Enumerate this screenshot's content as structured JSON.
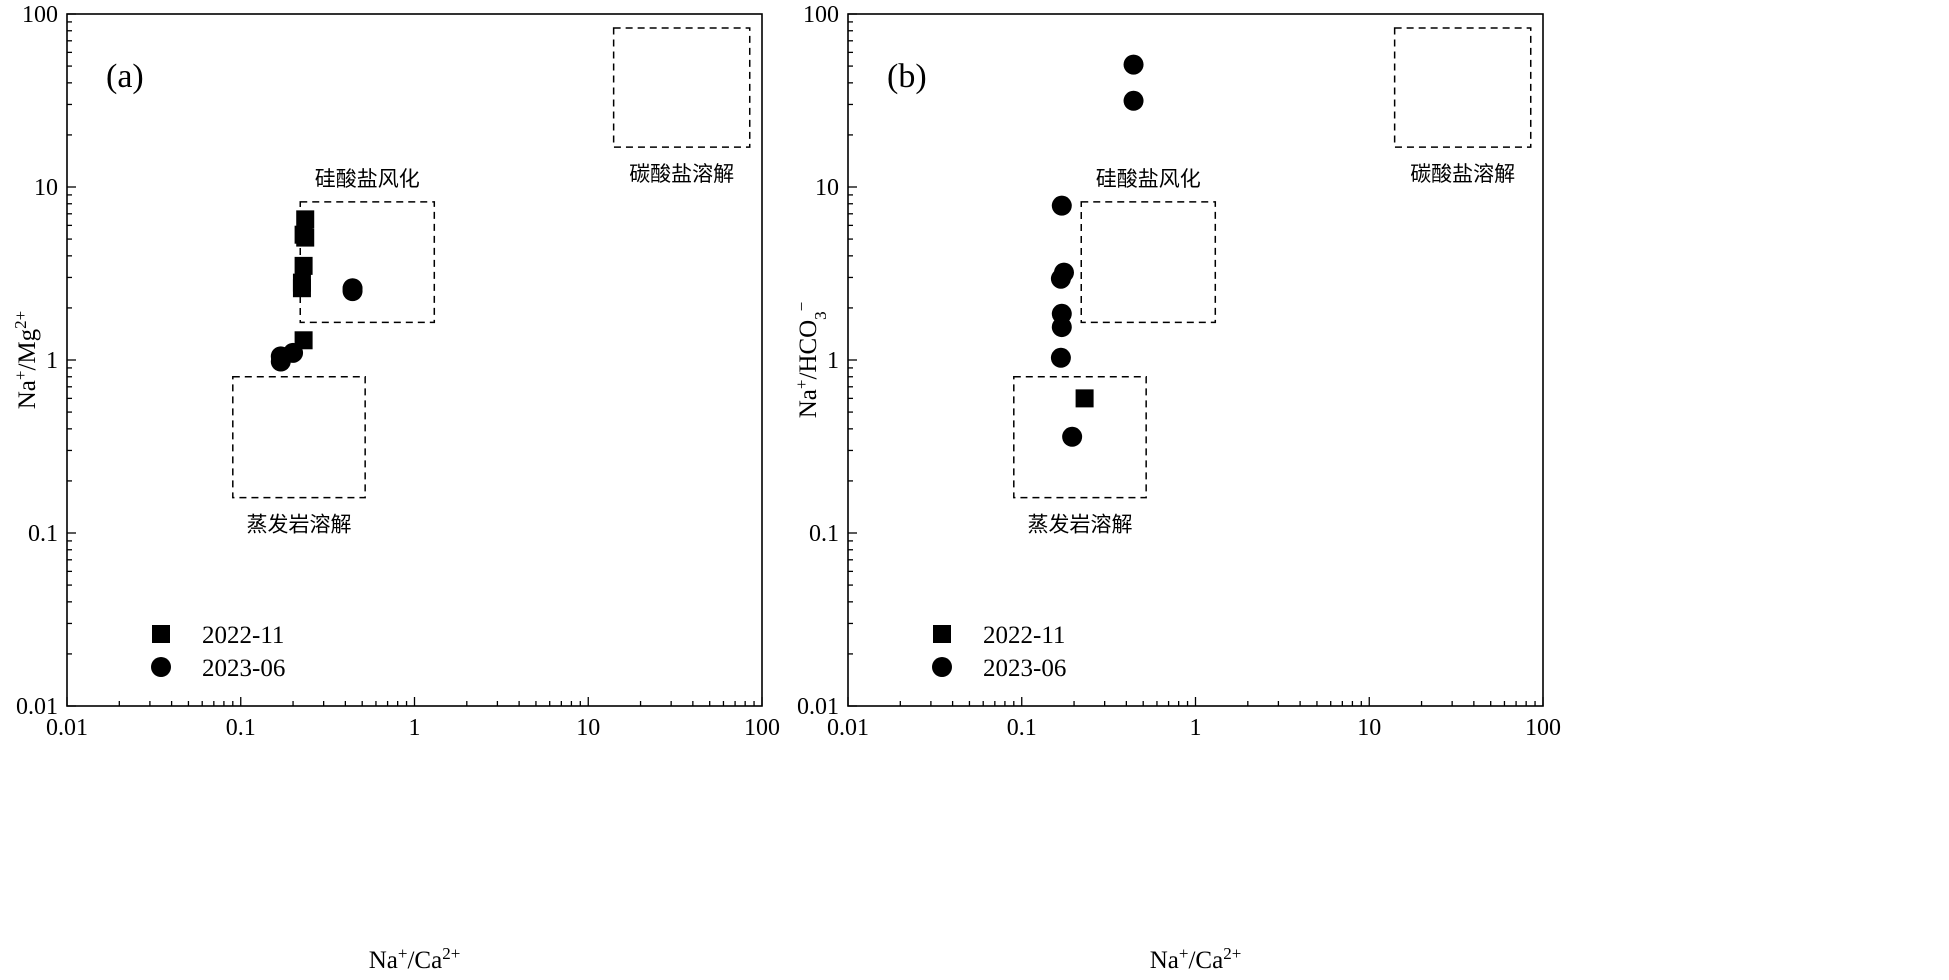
{
  "chart_data": [
    {
      "type": "scatter",
      "panel_label": "(a)",
      "xlabel": "Na⁺/Ca²⁺",
      "ylabel": "Na⁺/Mg²⁺",
      "x_scale": "log",
      "y_scale": "log",
      "xlim": [
        0.01,
        100
      ],
      "ylim": [
        0.01,
        100
      ],
      "x_ticks": [
        "0.01",
        "0.1",
        "1",
        "10",
        "100"
      ],
      "y_ticks": [
        "0.01",
        "0.1",
        "1",
        "10",
        "100"
      ],
      "grid": false,
      "legend_position": "bottom-left",
      "regions": [
        {
          "label": "蒸发岩溶解",
          "x": [
            0.09,
            0.52
          ],
          "y": [
            0.16,
            0.8
          ],
          "label_pos": "below"
        },
        {
          "label": "硅酸盐风化",
          "x": [
            0.22,
            1.3
          ],
          "y": [
            1.65,
            8.2
          ],
          "label_pos": "above"
        },
        {
          "label": "碳酸盐溶解",
          "x": [
            14,
            85
          ],
          "y": [
            17,
            83
          ],
          "label_pos": "below"
        }
      ],
      "series": [
        {
          "name": "2022-11",
          "marker": "square",
          "x": [
            0.235,
            0.23,
            0.23,
            0.225,
            0.225,
            0.23,
            0.235
          ],
          "y": [
            6.5,
            5.3,
            3.5,
            2.8,
            2.6,
            1.3,
            5.1
          ]
        },
        {
          "name": "2023-06",
          "marker": "circle",
          "x": [
            0.17,
            0.17,
            0.2,
            0.44,
            0.44
          ],
          "y": [
            1.05,
            0.98,
            1.1,
            2.6,
            2.5
          ]
        }
      ]
    },
    {
      "type": "scatter",
      "panel_label": "(b)",
      "xlabel": "Na⁺/Ca²⁺",
      "ylabel": "Na⁺/HCO₃⁻",
      "x_scale": "log",
      "y_scale": "log",
      "xlim": [
        0.01,
        100
      ],
      "ylim": [
        0.01,
        100
      ],
      "x_ticks": [
        "0.01",
        "0.1",
        "1",
        "10",
        "100"
      ],
      "y_ticks": [
        "0.01",
        "0.1",
        "1",
        "10",
        "100"
      ],
      "grid": false,
      "legend_position": "bottom-left",
      "regions": [
        {
          "label": "蒸发岩溶解",
          "x": [
            0.09,
            0.52
          ],
          "y": [
            0.16,
            0.8
          ],
          "label_pos": "below"
        },
        {
          "label": "硅酸盐风化",
          "x": [
            0.22,
            1.3
          ],
          "y": [
            1.65,
            8.2
          ],
          "label_pos": "above"
        },
        {
          "label": "碳酸盐溶解",
          "x": [
            14,
            85
          ],
          "y": [
            17,
            83
          ],
          "label_pos": "below"
        }
      ],
      "series": [
        {
          "name": "2022-11",
          "marker": "square",
          "x": [
            0.23
          ],
          "y": [
            0.6
          ]
        },
        {
          "name": "2023-06",
          "marker": "circle",
          "x": [
            0.44,
            0.44,
            0.17,
            0.175,
            0.168,
            0.17,
            0.17,
            0.168,
            0.195
          ],
          "y": [
            51,
            31.5,
            7.8,
            3.2,
            2.95,
            1.85,
            1.55,
            1.03,
            0.36
          ]
        }
      ]
    }
  ]
}
